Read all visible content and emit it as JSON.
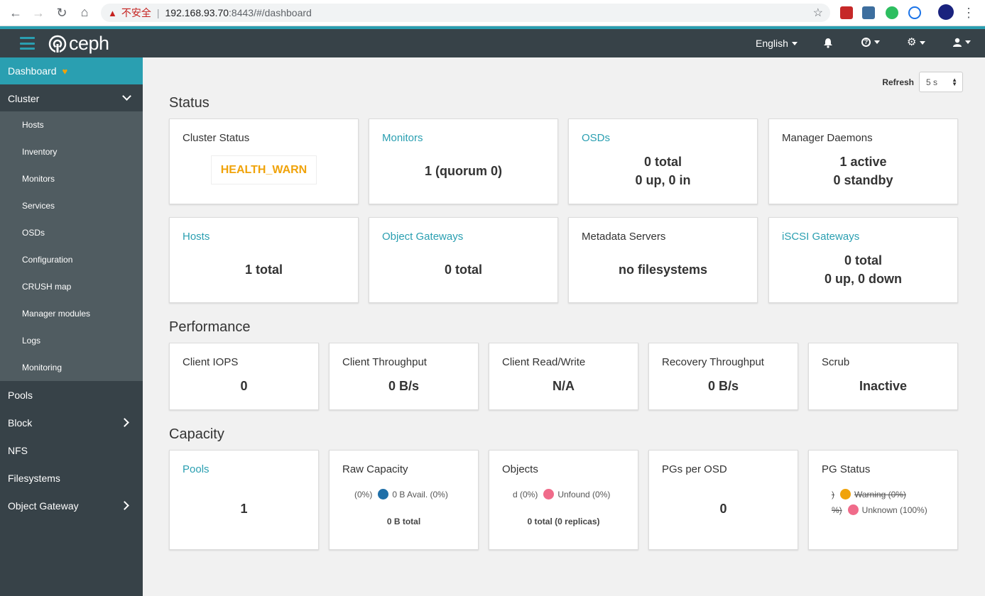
{
  "browser": {
    "insecure_label": "不安全",
    "url_host": "192.168.93.70",
    "url_path": ":8443/#/dashboard"
  },
  "navbar": {
    "logo_text": "ceph",
    "language": "English"
  },
  "sidebar": {
    "dashboard": "Dashboard",
    "cluster": "Cluster",
    "cluster_items": [
      "Hosts",
      "Inventory",
      "Monitors",
      "Services",
      "OSDs",
      "Configuration",
      "CRUSH map",
      "Manager modules",
      "Logs",
      "Monitoring"
    ],
    "pools": "Pools",
    "block": "Block",
    "nfs": "NFS",
    "filesystems": "Filesystems",
    "object_gateway": "Object Gateway"
  },
  "refresh": {
    "label": "Refresh",
    "value": "5 s"
  },
  "status": {
    "title": "Status",
    "cluster_status": {
      "label": "Cluster Status",
      "value": "HEALTH_WARN"
    },
    "monitors": {
      "label": "Monitors",
      "value": "1 (quorum 0)"
    },
    "osds": {
      "label": "OSDs",
      "line1": "0 total",
      "line2": "0 up, 0 in"
    },
    "manager_daemons": {
      "label": "Manager Daemons",
      "line1": "1 active",
      "line2": "0 standby"
    },
    "hosts": {
      "label": "Hosts",
      "value": "1 total"
    },
    "object_gateways": {
      "label": "Object Gateways",
      "value": "0 total"
    },
    "metadata_servers": {
      "label": "Metadata Servers",
      "value": "no filesystems"
    },
    "iscsi_gateways": {
      "label": "iSCSI Gateways",
      "line1": "0 total",
      "line2": "0 up, 0 down"
    }
  },
  "performance": {
    "title": "Performance",
    "client_iops": {
      "label": "Client IOPS",
      "value": "0"
    },
    "client_throughput": {
      "label": "Client Throughput",
      "value": "0 B/s"
    },
    "client_read_write": {
      "label": "Client Read/Write",
      "value": "N/A"
    },
    "recovery_throughput": {
      "label": "Recovery Throughput",
      "value": "0 B/s"
    },
    "scrub": {
      "label": "Scrub",
      "value": "Inactive"
    }
  },
  "capacity": {
    "title": "Capacity",
    "pools": {
      "label": "Pools",
      "value": "1"
    },
    "raw_capacity": {
      "label": "Raw Capacity",
      "legend_left": "(0%)",
      "legend_right": "0 B Avail. (0%)",
      "total": "0 B total"
    },
    "objects": {
      "label": "Objects",
      "legend_left": "d (0%)",
      "legend_right": "Unfound (0%)",
      "total": "0 total (0 replicas)"
    },
    "pgs_per_osd": {
      "label": "PGs per OSD",
      "value": "0"
    },
    "pg_status": {
      "label": "PG Status",
      "row1_left": ")",
      "row1_right": "Warning (0%)",
      "row2_left": "%)",
      "row2_right": "Unknown (100%)"
    }
  },
  "colors": {
    "accent": "#2a9fb1",
    "navbar": "#374248",
    "sidebar_sub": "#505c61",
    "health_warn": "#f0a30a",
    "raw_avail_dot": "#1f6fa8",
    "unfound_dot": "#f06b8a",
    "warning_dot": "#f0a30a",
    "unknown_dot": "#f06b8a"
  }
}
